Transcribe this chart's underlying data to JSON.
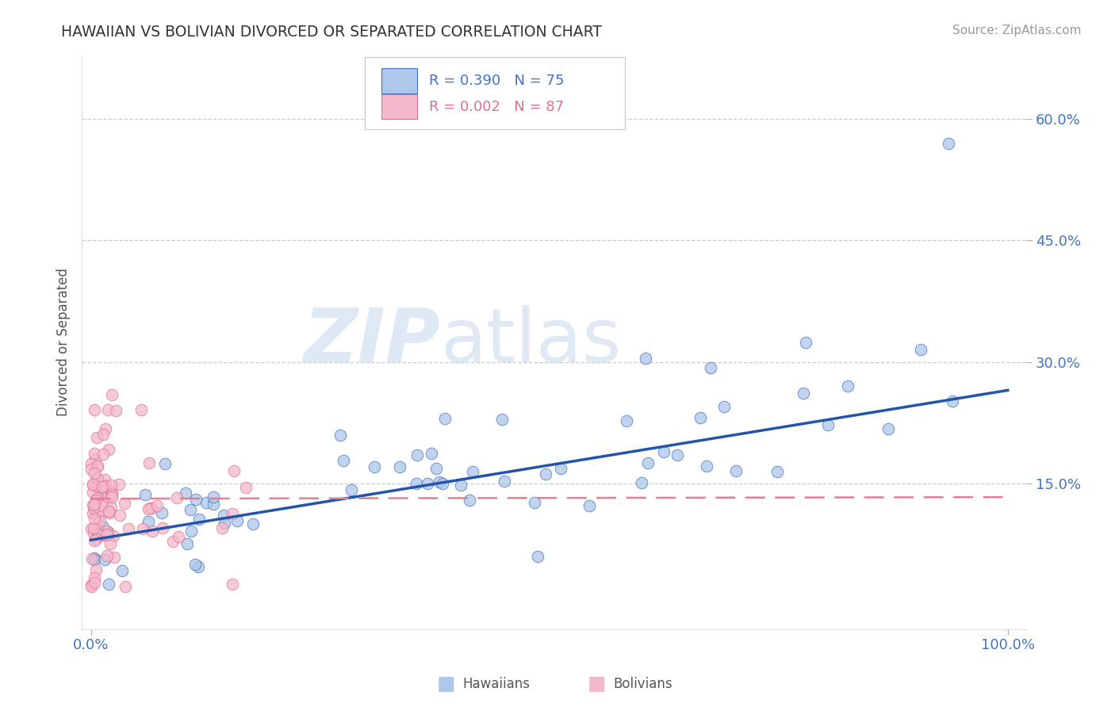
{
  "title": "HAWAIIAN VS BOLIVIAN DIVORCED OR SEPARATED CORRELATION CHART",
  "source": "Source: ZipAtlas.com",
  "ylabel": "Divorced or Separated",
  "watermark_zip": "ZIP",
  "watermark_atlas": "atlas",
  "legend_line1": "R = 0.390   N = 75",
  "legend_line2": "R = 0.002   N = 87",
  "legend_label1": "Hawaiians",
  "legend_label2": "Bolivians",
  "color_hawaiian_fill": "#aec6e8",
  "color_hawaiian_edge": "#4472c4",
  "color_bolivian_fill": "#f4b8cc",
  "color_bolivian_edge": "#e07090",
  "color_line_hawaiian": "#2255aa",
  "color_line_bolivian": "#e08090",
  "color_grid": "#cccccc",
  "color_tick": "#4472c4",
  "color_title": "#333333",
  "color_source": "#999999",
  "color_ylabel": "#555555",
  "color_watermark_zip": "#c5d8ee",
  "color_watermark_atlas": "#c5d8ee",
  "background_color": "#ffffff",
  "xlim": [
    -0.01,
    1.02
  ],
  "ylim": [
    -0.03,
    0.68
  ],
  "yticks": [
    0.15,
    0.3,
    0.45,
    0.6
  ],
  "ytick_labels": [
    "15.0%",
    "30.0%",
    "45.0%",
    "60.0%"
  ],
  "xticks": [
    0.0,
    1.0
  ],
  "xtick_labels": [
    "0.0%",
    "100.0%"
  ],
  "haw_line_x": [
    0.0,
    1.0
  ],
  "haw_line_y": [
    0.08,
    0.265
  ],
  "bol_line_x": [
    0.0,
    1.0
  ],
  "bol_line_y": [
    0.131,
    0.133
  ]
}
